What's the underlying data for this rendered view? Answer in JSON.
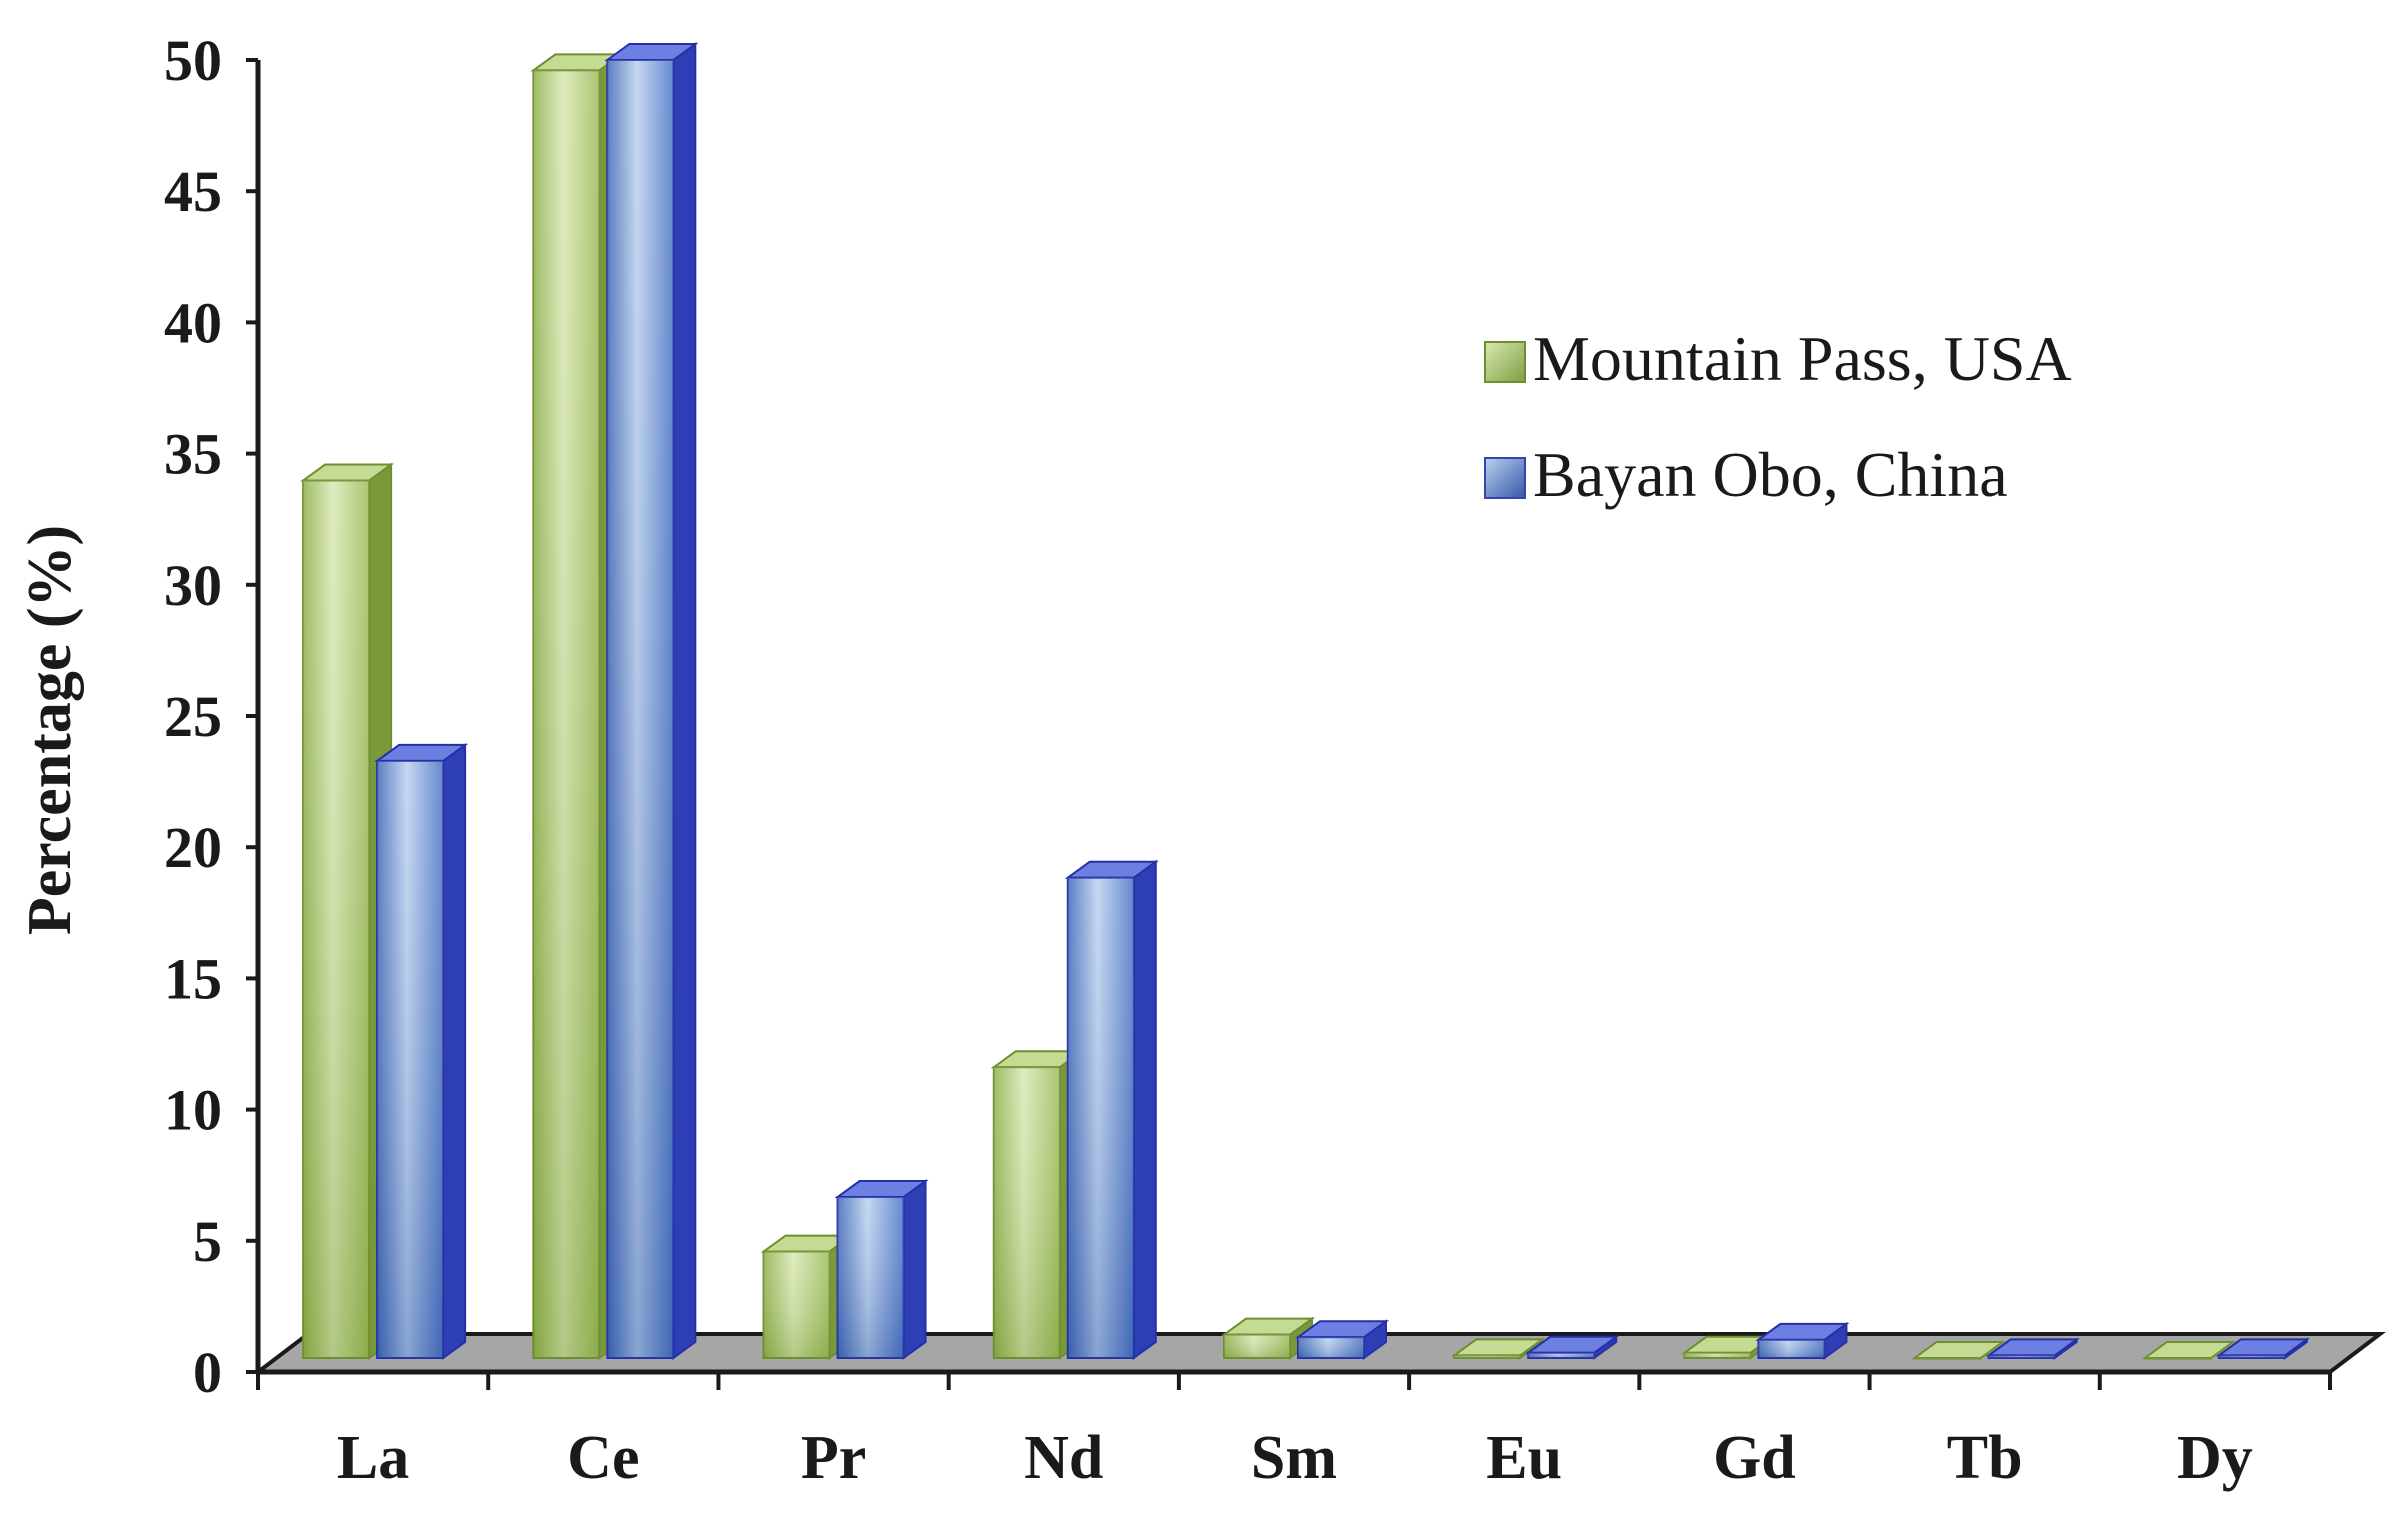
{
  "chart_data": {
    "type": "bar",
    "style": "3d-clustered-column",
    "ylabel": "Percentage (%)",
    "xlabel": "",
    "ylim": [
      0,
      50
    ],
    "yticks": [
      0,
      5,
      10,
      15,
      20,
      25,
      30,
      35,
      40,
      45,
      50
    ],
    "categories": [
      "La",
      "Ce",
      "Pr",
      "Nd",
      "Sm",
      "Eu",
      "Gd",
      "Tb",
      "Dy"
    ],
    "series": [
      {
        "name": "Mountain Pass, USA",
        "color": "#9cbb59",
        "values": [
          33.8,
          49.6,
          4.1,
          11.2,
          0.9,
          0.1,
          0.2,
          0.0,
          0.0
        ]
      },
      {
        "name": "Bayan Obo, China",
        "color": "#4a6fc9",
        "values": [
          23.0,
          50.0,
          6.2,
          18.5,
          0.8,
          0.2,
          0.7,
          0.1,
          0.1
        ]
      }
    ],
    "legend_position": "top-right",
    "grid": false
  }
}
